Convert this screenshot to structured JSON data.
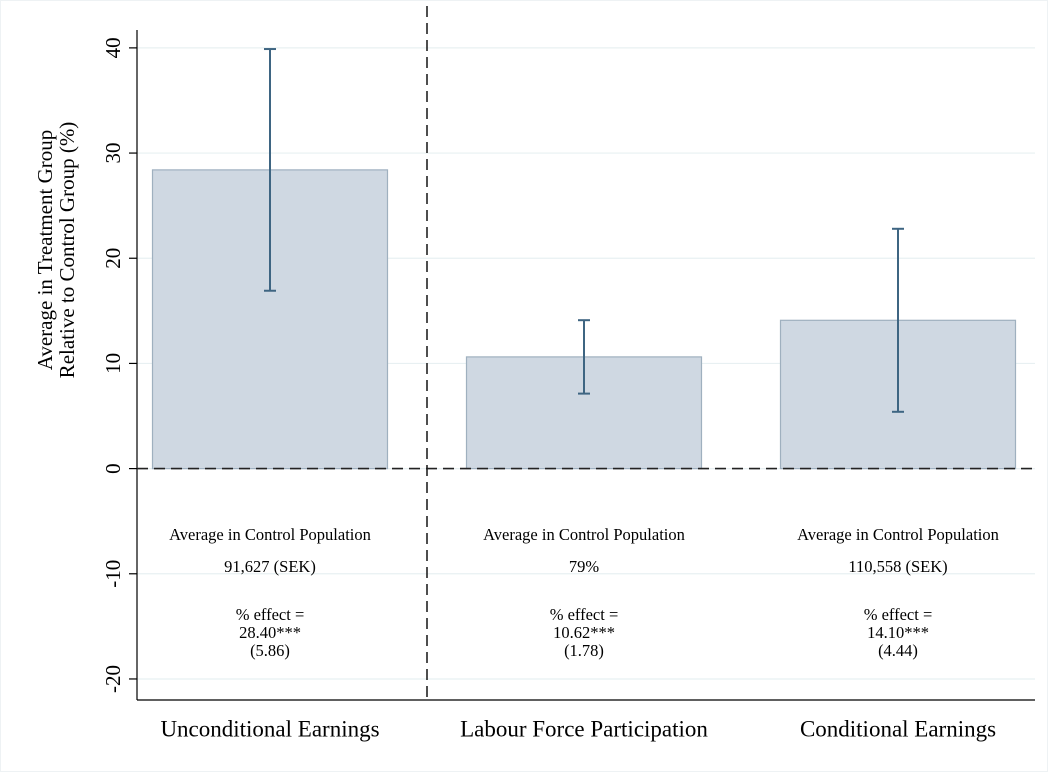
{
  "chart_data": {
    "type": "bar",
    "y_label": [
      "Average in Treatment Group",
      "Relative to Control Group (%)"
    ],
    "categories": [
      "Unconditional Earnings",
      "Labour Force Participation",
      "Conditional Earnings"
    ],
    "values": [
      28.4,
      10.62,
      14.1
    ],
    "value_labels": [
      "28.40***",
      "10.62***",
      "14.10***"
    ],
    "ci_low": [
      16.91,
      7.13,
      5.4
    ],
    "ci_high": [
      39.89,
      14.11,
      22.8
    ],
    "se": [
      5.86,
      1.78,
      4.44
    ],
    "se_labels": [
      "(5.86)",
      "(1.78)",
      "(4.44)"
    ],
    "control_header": "Average in Control Population",
    "control_labels": [
      "91,627 (SEK)",
      "79%",
      "110,558 (SEK)"
    ],
    "effect_prefix": "% effect =",
    "color": "#cfd8e2",
    "edge_color": "#9fb0bf",
    "error_color": "#3e6582",
    "ylim": [
      -22,
      41.7
    ],
    "yticks": [
      -20,
      -10,
      0,
      10,
      20,
      30,
      40
    ],
    "grid": true
  }
}
